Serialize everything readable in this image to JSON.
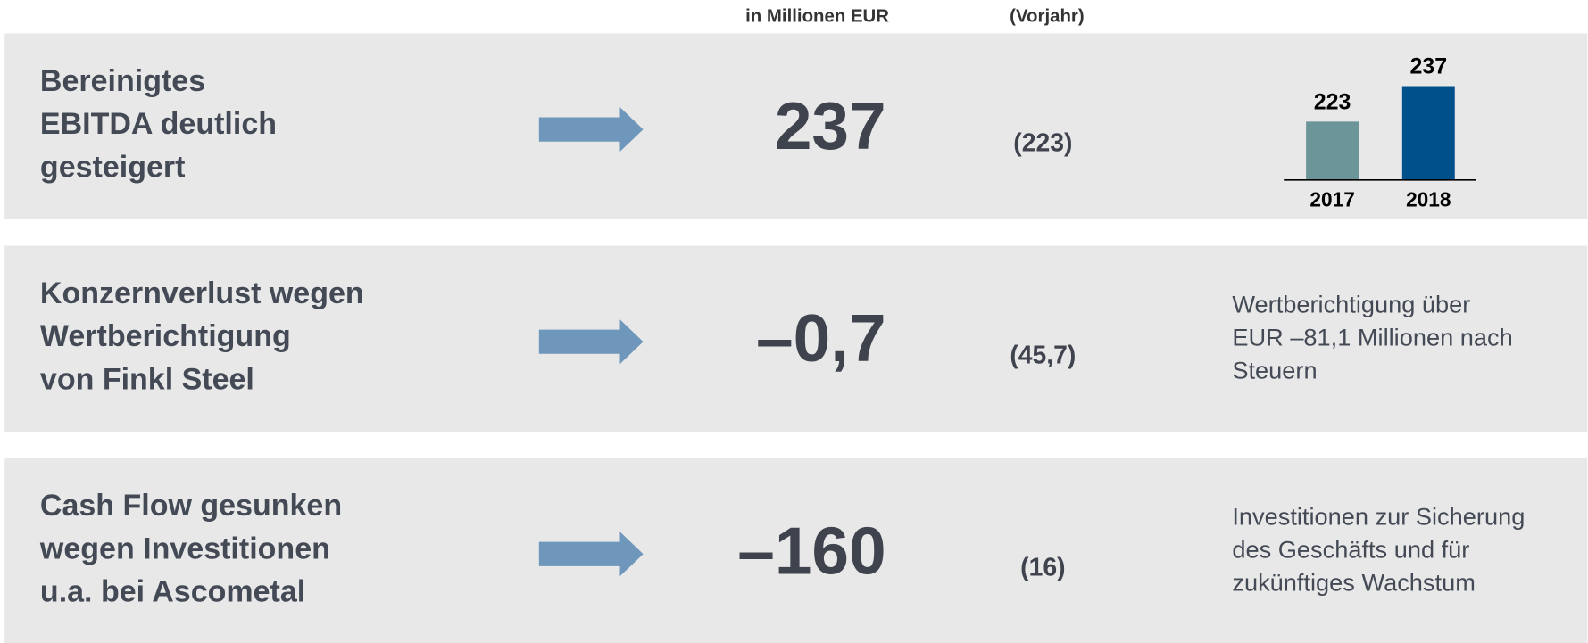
{
  "header": {
    "unit_label": "in Millionen EUR",
    "prior_label": "(Vorjahr)"
  },
  "rows": [
    {
      "title_lines": [
        "Bereinigtes",
        "EBITDA deutlich",
        "gesteigert"
      ],
      "value": "237",
      "prior": "(223)"
    },
    {
      "title_lines": [
        "Konzernverlust wegen",
        "Wertberichtigung",
        "von Finkl Steel"
      ],
      "value": "–0,7",
      "prior": "(45,7)",
      "note_lines": [
        "Wertberichtigung über",
        "EUR –81,1 Millionen nach",
        "Steuern"
      ]
    },
    {
      "title_lines": [
        "Cash Flow gesunken",
        "wegen Investitionen",
        "u.a. bei Ascometal"
      ],
      "value": "–160",
      "prior": "(16)",
      "note_lines": [
        "Investitionen zur Sicherung",
        "des Geschäfts und für",
        "zukünftiges Wachstum"
      ]
    }
  ],
  "chart_data": {
    "type": "bar",
    "categories": [
      "2017",
      "2018"
    ],
    "values": [
      223,
      237
    ],
    "colors": [
      "#6b9598",
      "#00508c"
    ],
    "ylim": [
      200,
      240
    ]
  }
}
